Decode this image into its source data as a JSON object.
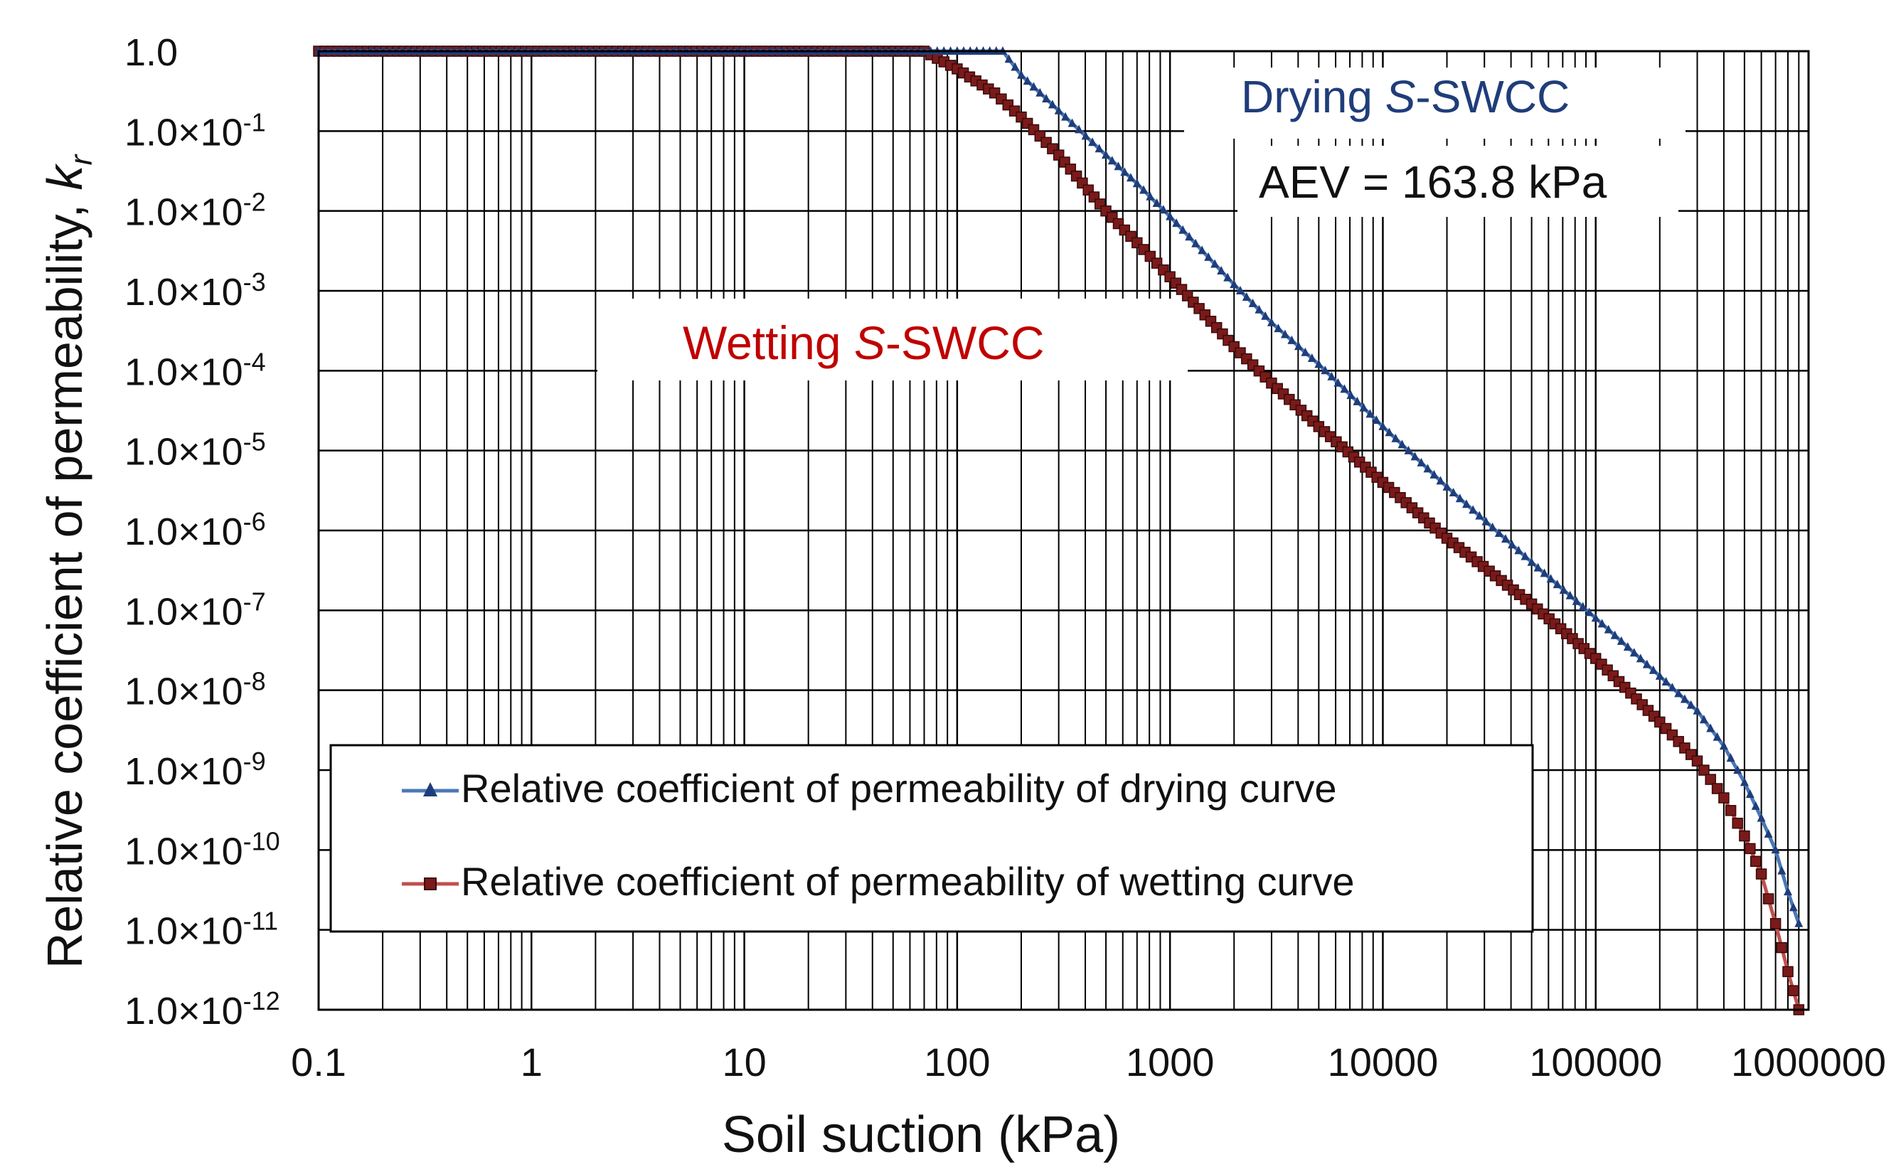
{
  "chart_data": {
    "type": "line",
    "title": "",
    "xlabel": "Soil suction (kPa)",
    "ylabel_main": "Relative coefficient of permeability, ",
    "ylabel_symbol": "k",
    "ylabel_sub": "r",
    "x_scale": "log",
    "y_scale": "log",
    "xlim": [
      0.1,
      1000000
    ],
    "ylim": [
      1e-12,
      1
    ],
    "grid": true,
    "x_ticks": [
      0.1,
      1,
      10,
      100,
      1000,
      10000,
      100000,
      1000000
    ],
    "x_tick_labels": [
      "0.1",
      "1",
      "10",
      "100",
      "1000",
      "10000",
      "100000",
      "1000000"
    ],
    "y_ticks": [
      {
        "value": 1,
        "mantissa": "1.0",
        "exponent": ""
      },
      {
        "value": 0.1,
        "mantissa": "1.0×10",
        "exponent": "-1"
      },
      {
        "value": 0.01,
        "mantissa": "1.0×10",
        "exponent": "-2"
      },
      {
        "value": 0.001,
        "mantissa": "1.0×10",
        "exponent": "-3"
      },
      {
        "value": 0.0001,
        "mantissa": "1.0×10",
        "exponent": "-4"
      },
      {
        "value": 1e-05,
        "mantissa": "1.0×10",
        "exponent": "-5"
      },
      {
        "value": 1e-06,
        "mantissa": "1.0×10",
        "exponent": "-6"
      },
      {
        "value": 1e-07,
        "mantissa": "1.0×10",
        "exponent": "-7"
      },
      {
        "value": 1e-08,
        "mantissa": "1.0×10",
        "exponent": "-8"
      },
      {
        "value": 1e-09,
        "mantissa": "1.0×10",
        "exponent": "-9"
      },
      {
        "value": 1e-10,
        "mantissa": "1.0×10",
        "exponent": "-10"
      },
      {
        "value": 1e-11,
        "mantissa": "1.0×10",
        "exponent": "-11"
      },
      {
        "value": 1e-12,
        "mantissa": "1.0×10",
        "exponent": "-12"
      }
    ],
    "annotations": [
      {
        "id": "drying-label",
        "parts": [
          "Drying ",
          "S",
          "-SWCC"
        ],
        "color": "#1f3d7a"
      },
      {
        "id": "aev-label",
        "text": "AEV = 163.8 kPa",
        "color": "#111111"
      },
      {
        "id": "wetting-label",
        "parts": [
          "Wetting ",
          "S",
          "-SWCC"
        ],
        "color": "#c00000"
      }
    ],
    "legend": {
      "position": "bottom-center",
      "entries": [
        "Relative coefficient of permeability of drying curve",
        "Relative coefficient of permeability of wetting curve"
      ]
    },
    "series": [
      {
        "name": "Relative coefficient of permeability of drying curve",
        "color": "#4a78b4",
        "marker": "triangle",
        "x": [
          0.1,
          1,
          10,
          75,
          100,
          163.8,
          200,
          300,
          500,
          700,
          1000,
          2000,
          3000,
          5000,
          10000,
          20000,
          50000,
          100000,
          200000,
          300000,
          400000,
          500000,
          600000,
          700000,
          800000,
          900000
        ],
        "y": [
          1,
          1,
          1,
          1,
          1,
          1,
          0.5,
          0.18,
          0.05,
          0.022,
          0.0085,
          0.0012,
          0.0004,
          0.00012,
          2e-05,
          3.5e-06,
          4e-07,
          8e-08,
          1.5e-08,
          5.5e-09,
          2e-09,
          7e-10,
          2.5e-10,
          1e-10,
          3e-11,
          1.2e-11
        ]
      },
      {
        "name": "Relative coefficient of permeability of wetting curve",
        "color": "#c0504d",
        "marker": "square",
        "x": [
          0.1,
          1,
          10,
          70,
          100,
          150,
          200,
          300,
          500,
          700,
          1000,
          2000,
          3000,
          5000,
          10000,
          20000,
          50000,
          100000,
          200000,
          300000,
          400000,
          500000,
          600000,
          700000,
          800000,
          900000
        ],
        "y": [
          1,
          1,
          1,
          1,
          0.6,
          0.3,
          0.15,
          0.05,
          0.01,
          0.004,
          0.0015,
          0.0002,
          7e-05,
          2e-05,
          4e-06,
          8e-07,
          1.2e-07,
          2.5e-08,
          4e-09,
          1.3e-09,
          4.5e-10,
          1.5e-10,
          5e-11,
          1.2e-11,
          3e-12,
          1e-12
        ]
      }
    ]
  }
}
